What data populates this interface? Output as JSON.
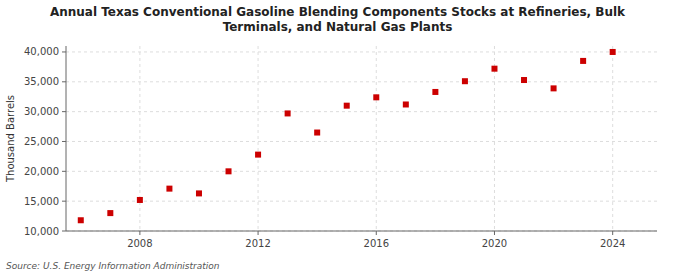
{
  "chart_data": {
    "type": "scatter",
    "title": "Annual Texas Conventional Gasoline Blending Components Stocks at Refineries, Bulk\nTerminals, and Natural Gas Plants",
    "ylabel": "Thousand Barrels",
    "source": "Source: U.S. Energy Information Administration",
    "x": [
      2006,
      2007,
      2008,
      2009,
      2010,
      2011,
      2012,
      2013,
      2014,
      2015,
      2016,
      2017,
      2018,
      2019,
      2020,
      2021,
      2022,
      2023,
      2024
    ],
    "values": [
      11800,
      13000,
      15200,
      17100,
      16300,
      20000,
      22800,
      29700,
      26500,
      31000,
      32400,
      31200,
      33300,
      35100,
      37200,
      35300,
      33900,
      38500,
      40000
    ],
    "color": "#cc0000",
    "marker": "square",
    "grid": true,
    "xlim": [
      2005.5,
      2025.5
    ],
    "xticks": [
      2008,
      2012,
      2016,
      2020,
      2024
    ],
    "ylim": [
      10000,
      41000
    ],
    "yticks": [
      {
        "value": 10000,
        "label": "10,000"
      },
      {
        "value": 15000,
        "label": "15,000"
      },
      {
        "value": 20000,
        "label": "20,000"
      },
      {
        "value": 25000,
        "label": "25,000"
      },
      {
        "value": 30000,
        "label": "30,000"
      },
      {
        "value": 35000,
        "label": "35,000"
      },
      {
        "value": 40000,
        "label": "40,000"
      }
    ]
  }
}
